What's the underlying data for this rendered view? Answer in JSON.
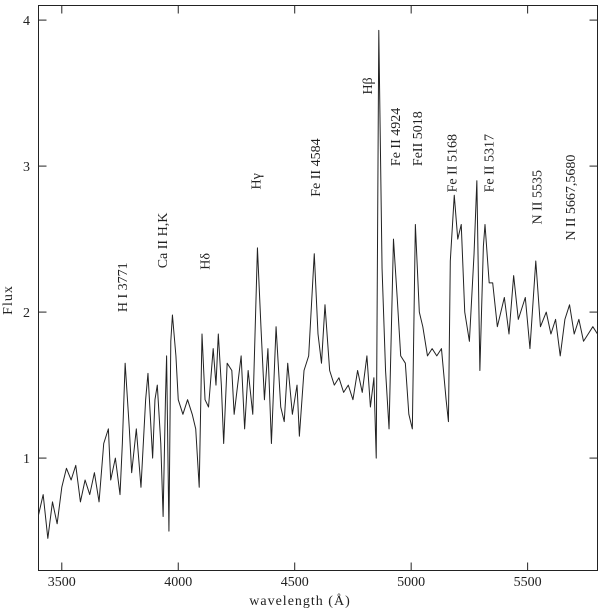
{
  "chart_data": {
    "type": "line",
    "x_label": "wavelength (Å)",
    "y_label": "Flux",
    "xlim": [
      3400,
      5800
    ],
    "ylim": [
      0.23,
      4.1
    ],
    "xticks": [
      3500,
      4000,
      4500,
      5000,
      5500
    ],
    "yticks": [
      1,
      2,
      3,
      4
    ],
    "x": [
      3400,
      3420,
      3440,
      3460,
      3480,
      3500,
      3520,
      3540,
      3560,
      3580,
      3600,
      3620,
      3640,
      3660,
      3680,
      3700,
      3710,
      3730,
      3750,
      3760,
      3772,
      3790,
      3800,
      3820,
      3840,
      3860,
      3870,
      3890,
      3900,
      3910,
      3925,
      3935,
      3945,
      3950,
      3960,
      3968,
      3975,
      3990,
      4000,
      4020,
      4040,
      4060,
      4075,
      4090,
      4102,
      4115,
      4130,
      4150,
      4162,
      4172,
      4185,
      4195,
      4210,
      4230,
      4240,
      4255,
      4270,
      4285,
      4300,
      4320,
      4340,
      4355,
      4370,
      4385,
      4400,
      4420,
      4440,
      4455,
      4470,
      4490,
      4510,
      4520,
      4540,
      4560,
      4584,
      4600,
      4615,
      4630,
      4650,
      4670,
      4690,
      4710,
      4730,
      4750,
      4770,
      4790,
      4810,
      4825,
      4840,
      4850,
      4861,
      4875,
      4890,
      4905,
      4924,
      4940,
      4955,
      4975,
      4990,
      5005,
      5018,
      5035,
      5050,
      5070,
      5090,
      5110,
      5130,
      5150,
      5160,
      5168,
      5185,
      5200,
      5215,
      5230,
      5250,
      5270,
      5282,
      5295,
      5310,
      5317,
      5335,
      5350,
      5370,
      5400,
      5420,
      5440,
      5460,
      5490,
      5510,
      5535,
      5555,
      5580,
      5600,
      5620,
      5640,
      5660,
      5680,
      5700,
      5720,
      5740,
      5760,
      5780,
      5800
    ],
    "series": [
      {
        "color": "#222222",
        "values": [
          0.61,
          0.75,
          0.45,
          0.7,
          0.55,
          0.8,
          0.93,
          0.85,
          0.95,
          0.7,
          0.85,
          0.75,
          0.9,
          0.7,
          1.1,
          1.2,
          0.85,
          1.0,
          0.75,
          1.1,
          1.65,
          1.2,
          0.9,
          1.2,
          0.8,
          1.4,
          1.58,
          1.0,
          1.4,
          1.5,
          1.1,
          0.6,
          1.4,
          1.7,
          0.5,
          1.8,
          1.98,
          1.7,
          1.4,
          1.3,
          1.4,
          1.3,
          1.2,
          0.8,
          1.85,
          1.4,
          1.35,
          1.75,
          1.5,
          1.85,
          1.5,
          1.1,
          1.65,
          1.6,
          1.3,
          1.5,
          1.7,
          1.2,
          1.6,
          1.3,
          2.44,
          1.9,
          1.4,
          1.75,
          1.1,
          1.9,
          1.35,
          1.25,
          1.65,
          1.3,
          1.5,
          1.15,
          1.6,
          1.7,
          2.4,
          1.85,
          1.65,
          2.05,
          1.6,
          1.5,
          1.55,
          1.45,
          1.5,
          1.4,
          1.6,
          1.45,
          1.7,
          1.35,
          1.55,
          1.0,
          3.93,
          2.3,
          1.6,
          1.2,
          2.5,
          2.1,
          1.7,
          1.65,
          1.3,
          1.2,
          2.6,
          2.0,
          1.9,
          1.7,
          1.75,
          1.7,
          1.75,
          1.4,
          1.25,
          2.35,
          2.8,
          2.5,
          2.6,
          2.0,
          1.8,
          2.4,
          2.9,
          1.6,
          2.45,
          2.6,
          2.2,
          2.2,
          1.9,
          2.1,
          1.85,
          2.25,
          1.95,
          2.1,
          1.75,
          2.35,
          1.9,
          2.0,
          1.85,
          1.95,
          1.7,
          1.95,
          2.05,
          1.85,
          1.95,
          1.8,
          1.85,
          1.9,
          1.85
        ]
      }
    ],
    "annotations": [
      {
        "text": "H I 3771",
        "x": 3759,
        "y": 2.0
      },
      {
        "text": "Ca II H,K",
        "x": 3931,
        "y": 2.3
      },
      {
        "text": "Hδ",
        "x": 4112,
        "y": 2.29
      },
      {
        "text": "Hγ",
        "x": 4332,
        "y": 2.84
      },
      {
        "text": "Fe II 4584",
        "x": 4587,
        "y": 2.79
      },
      {
        "text": "Hβ",
        "x": 4811,
        "y": 3.49
      },
      {
        "text": "Fe II 4924",
        "x": 4931,
        "y": 3.0
      },
      {
        "text": "FeII 5018",
        "x": 5026,
        "y": 3.0
      },
      {
        "text": "Fe II 5168",
        "x": 5173,
        "y": 2.82
      },
      {
        "text": "Fe II 5317",
        "x": 5332,
        "y": 2.82
      },
      {
        "text": "N II 5535",
        "x": 5539,
        "y": 2.6
      },
      {
        "text": "N II 5667,5680",
        "x": 5681,
        "y": 2.49
      }
    ]
  }
}
